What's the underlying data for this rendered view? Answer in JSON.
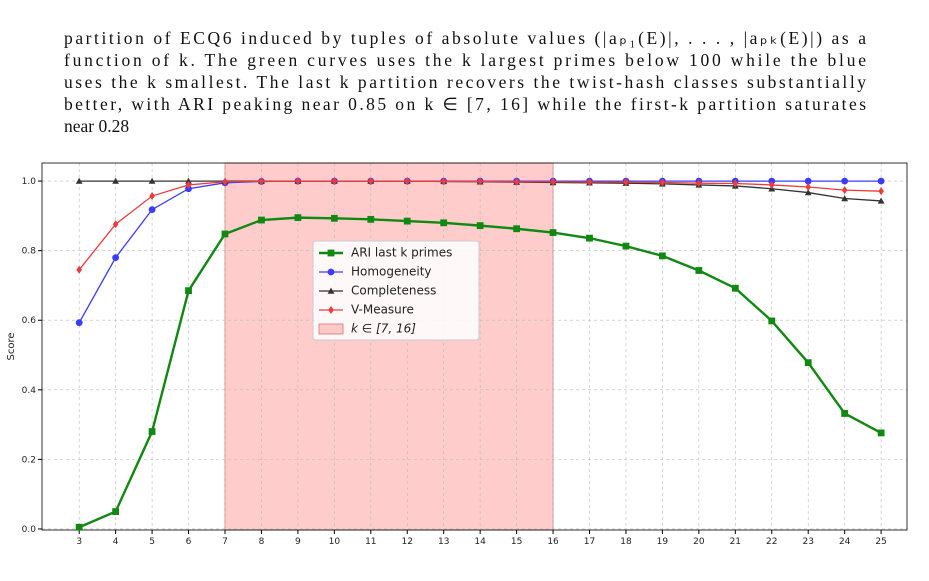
{
  "paragraph": [
    "partition of ECQ6 induced by tuples of absolute values (|aₚ₁(E)|, . . . , |aₚₖ(E)|) as a",
    "function of k. The green curves uses the k largest primes below 100 while the blue",
    "uses the k smallest. The last k partition recovers the twist-hash classes substantially",
    "better, with ARI peaking near 0.85 on k ∈ [7, 16] while the first-k partition saturates",
    "near 0.28"
  ],
  "chart_data": {
    "type": "line",
    "y_label": "Score",
    "x": [
      3,
      4,
      5,
      6,
      7,
      8,
      9,
      10,
      11,
      12,
      13,
      14,
      15,
      16,
      17,
      18,
      19,
      20,
      21,
      22,
      23,
      24,
      25
    ],
    "xlim": [
      1.98,
      25.71
    ],
    "xticks": [
      3,
      4,
      5,
      6,
      7,
      8,
      9,
      10,
      11,
      12,
      13,
      14,
      15,
      16,
      17,
      18,
      19,
      20,
      21,
      22,
      23,
      24,
      25
    ],
    "ylim": [
      -0.003,
      1.052
    ],
    "yticks": [
      {
        "value": 0,
        "label": "0.0"
      },
      {
        "value": 0.2,
        "label": "0.2"
      },
      {
        "value": 0.4,
        "label": "0.4"
      },
      {
        "value": 0.6,
        "label": "0.6"
      },
      {
        "value": 0.8,
        "label": "0.8"
      },
      {
        "value": 1,
        "label": "1.0"
      }
    ],
    "grid": true,
    "legend": "center",
    "span": {
      "x": [
        7,
        16
      ],
      "label": "k ∈ [7, 16]",
      "color": "#ff9999"
    },
    "series": [
      {
        "name": "ARI last k primes",
        "color": "#118811",
        "marker": "square",
        "values": [
          0.005,
          0.05,
          0.28,
          0.685,
          0.848,
          0.888,
          0.895,
          0.893,
          0.89,
          0.885,
          0.88,
          0.872,
          0.863,
          0.852,
          0.836,
          0.813,
          0.785,
          0.743,
          0.692,
          0.598,
          0.478,
          0.332,
          0.276
        ]
      },
      {
        "name": "Homogeneity",
        "color": "#3b3bff",
        "marker": "circle",
        "values": [
          0.593,
          0.78,
          0.918,
          0.978,
          0.995,
          0.999,
          1,
          1,
          1,
          1,
          1,
          1,
          1,
          1,
          1,
          1,
          1,
          1,
          1,
          1,
          1,
          1,
          1
        ]
      },
      {
        "name": "Completeness",
        "color": "#333333",
        "marker": "triangle",
        "values": [
          1,
          1,
          1,
          1,
          1,
          1,
          1,
          1,
          1,
          1,
          0.999,
          0.998,
          0.997,
          0.996,
          0.995,
          0.994,
          0.992,
          0.989,
          0.986,
          0.978,
          0.967,
          0.95,
          0.943
        ]
      },
      {
        "name": "V-Measure",
        "color": "#ee3b3b",
        "marker": "diamond",
        "values": [
          0.745,
          0.876,
          0.957,
          0.989,
          0.998,
          0.999,
          1,
          1,
          1,
          1,
          0.999,
          0.999,
          0.998,
          0.998,
          0.997,
          0.997,
          0.996,
          0.994,
          0.993,
          0.989,
          0.983,
          0.974,
          0.971
        ]
      }
    ]
  }
}
